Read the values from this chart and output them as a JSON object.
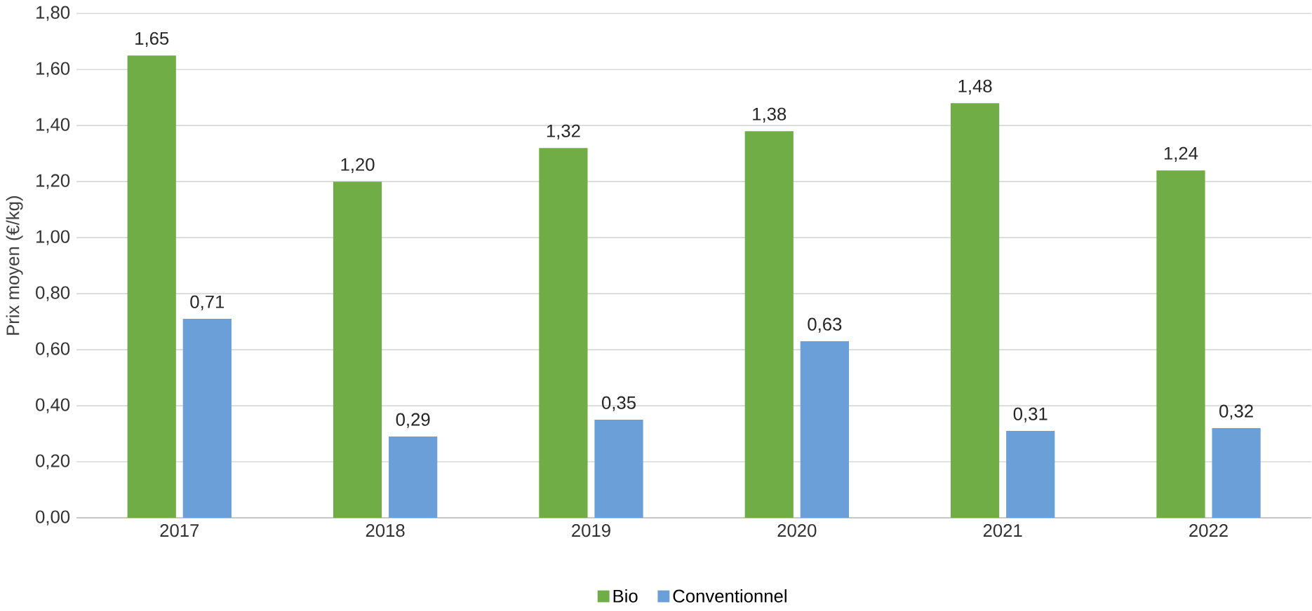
{
  "chart_data": {
    "type": "bar",
    "ylabel": "Prix moyen (€/kg)",
    "categories": [
      "2017",
      "2018",
      "2019",
      "2020",
      "2021",
      "2022"
    ],
    "series": [
      {
        "name": "Bio",
        "color": "#70ad47",
        "values": [
          1.65,
          1.2,
          1.32,
          1.38,
          1.48,
          1.24
        ],
        "value_labels": [
          "1,65",
          "1,20",
          "1,32",
          "1,38",
          "1,48",
          "1,24"
        ]
      },
      {
        "name": "Conventionnel",
        "color": "#6a9fd8",
        "values": [
          0.71,
          0.29,
          0.35,
          0.63,
          0.31,
          0.32
        ],
        "value_labels": [
          "0,71",
          "0,29",
          "0,35",
          "0,63",
          "0,31",
          "0,32"
        ]
      }
    ],
    "ylim": [
      0,
      1.8
    ],
    "yticks": [
      {
        "value": 0,
        "label": "0,00"
      },
      {
        "value": 0.2,
        "label": "0,20"
      },
      {
        "value": 0.4,
        "label": "0,40"
      },
      {
        "value": 0.6,
        "label": "0,60"
      },
      {
        "value": 0.8,
        "label": "0,80"
      },
      {
        "value": 1.0,
        "label": "1,00"
      },
      {
        "value": 1.2,
        "label": "1,20"
      },
      {
        "value": 1.4,
        "label": "1,40"
      },
      {
        "value": 1.6,
        "label": "1,60"
      },
      {
        "value": 1.8,
        "label": "1,80"
      }
    ],
    "grid": "y",
    "legend": "bottom"
  }
}
